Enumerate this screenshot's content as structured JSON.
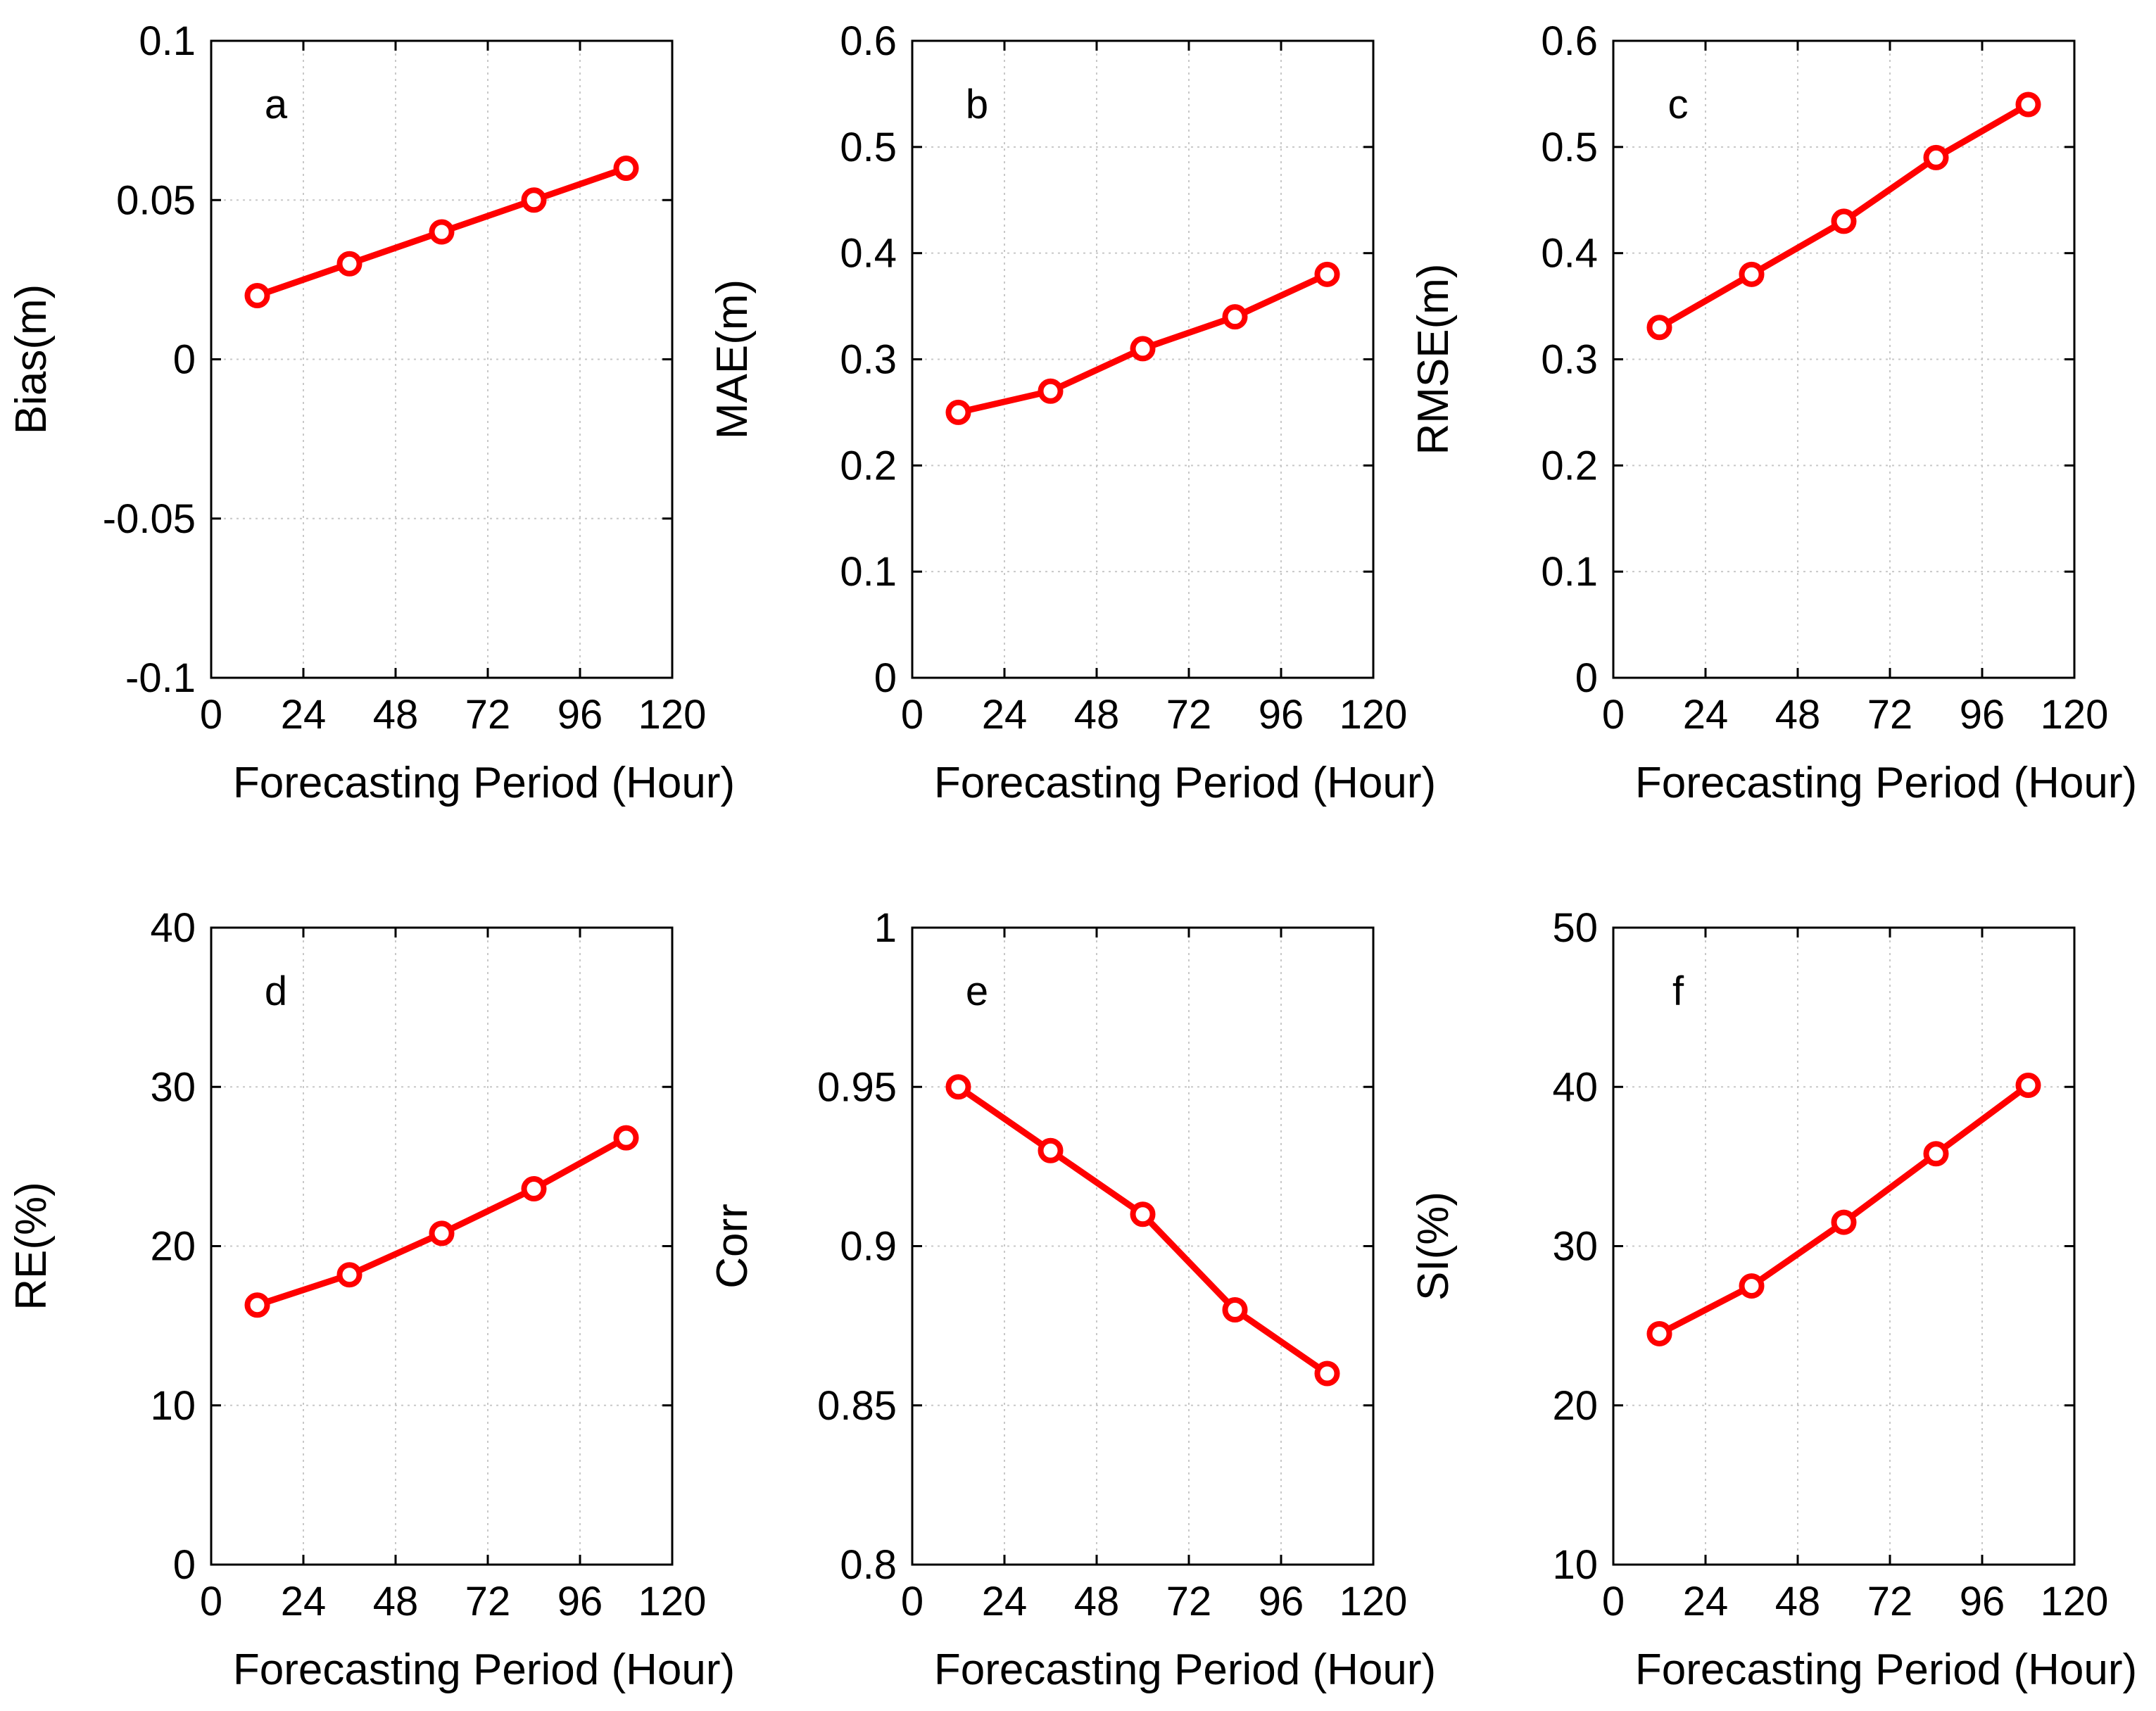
{
  "series_color": "#ff0000",
  "chart_data": [
    {
      "type": "line",
      "panel": "a",
      "ylabel": "Bias(m)",
      "xlabel": "Forecasting Period (Hour)",
      "x": [
        12,
        36,
        60,
        84,
        108
      ],
      "values": [
        0.02,
        0.03,
        0.04,
        0.05,
        0.06
      ],
      "xlim": [
        0,
        120
      ],
      "ylim": [
        -0.1,
        0.1
      ],
      "xticks": [
        0,
        24,
        48,
        72,
        96,
        120
      ],
      "yticks": [
        -0.1,
        -0.05,
        0,
        0.05,
        0.1
      ],
      "ytick_labels": [
        "-0.1",
        "-0.05",
        "0",
        "0.05",
        "0.1"
      ],
      "grid": true
    },
    {
      "type": "line",
      "panel": "b",
      "ylabel": "MAE(m)",
      "xlabel": "Forecasting Period (Hour)",
      "x": [
        12,
        36,
        60,
        84,
        108
      ],
      "values": [
        0.25,
        0.27,
        0.31,
        0.34,
        0.38
      ],
      "xlim": [
        0,
        120
      ],
      "ylim": [
        0,
        0.6
      ],
      "xticks": [
        0,
        24,
        48,
        72,
        96,
        120
      ],
      "yticks": [
        0,
        0.1,
        0.2,
        0.3,
        0.4,
        0.5,
        0.6
      ],
      "ytick_labels": [
        "0",
        "0.1",
        "0.2",
        "0.3",
        "0.4",
        "0.5",
        "0.6"
      ],
      "grid": true
    },
    {
      "type": "line",
      "panel": "c",
      "ylabel": "RMSE(m)",
      "xlabel": "Forecasting Period (Hour)",
      "x": [
        12,
        36,
        60,
        84,
        108
      ],
      "values": [
        0.33,
        0.38,
        0.43,
        0.49,
        0.54
      ],
      "xlim": [
        0,
        120
      ],
      "ylim": [
        0,
        0.6
      ],
      "xticks": [
        0,
        24,
        48,
        72,
        96,
        120
      ],
      "yticks": [
        0,
        0.1,
        0.2,
        0.3,
        0.4,
        0.5,
        0.6
      ],
      "ytick_labels": [
        "0",
        "0.1",
        "0.2",
        "0.3",
        "0.4",
        "0.5",
        "0.6"
      ],
      "grid": true
    },
    {
      "type": "line",
      "panel": "d",
      "ylabel": "RE(%)",
      "xlabel": "Forecasting Period (Hour)",
      "x": [
        12,
        36,
        60,
        84,
        108
      ],
      "values": [
        16.3,
        18.2,
        20.8,
        23.6,
        26.8
      ],
      "xlim": [
        0,
        120
      ],
      "ylim": [
        0,
        40
      ],
      "xticks": [
        0,
        24,
        48,
        72,
        96,
        120
      ],
      "yticks": [
        0,
        10,
        20,
        30,
        40
      ],
      "ytick_labels": [
        "0",
        "10",
        "20",
        "30",
        "40"
      ],
      "grid": true
    },
    {
      "type": "line",
      "panel": "e",
      "ylabel": "Corr",
      "xlabel": "Forecasting Period (Hour)",
      "x": [
        12,
        36,
        60,
        84,
        108
      ],
      "values": [
        0.95,
        0.93,
        0.91,
        0.88,
        0.86
      ],
      "xlim": [
        0,
        120
      ],
      "ylim": [
        0.8,
        1
      ],
      "xticks": [
        0,
        24,
        48,
        72,
        96,
        120
      ],
      "yticks": [
        0.8,
        0.85,
        0.9,
        0.95,
        1
      ],
      "ytick_labels": [
        "0.8",
        "0.85",
        "0.9",
        "0.95",
        "1"
      ],
      "grid": true
    },
    {
      "type": "line",
      "panel": "f",
      "ylabel": "SI(%)",
      "xlabel": "Forecasting Period (Hour)",
      "x": [
        12,
        36,
        60,
        84,
        108
      ],
      "values": [
        24.5,
        27.5,
        31.5,
        35.8,
        40.1
      ],
      "xlim": [
        0,
        120
      ],
      "ylim": [
        10,
        50
      ],
      "xticks": [
        0,
        24,
        48,
        72,
        96,
        120
      ],
      "yticks": [
        10,
        20,
        30,
        40,
        50
      ],
      "ytick_labels": [
        "10",
        "20",
        "30",
        "40",
        "50"
      ],
      "grid": true
    }
  ]
}
